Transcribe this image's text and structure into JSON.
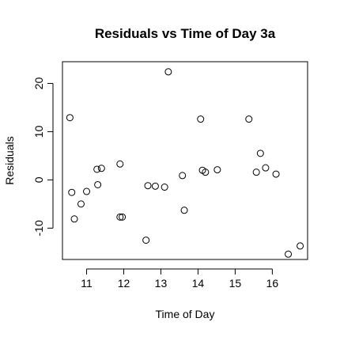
{
  "chart_data": {
    "type": "scatter",
    "title": "Residuals vs Time of Day 3a",
    "xlabel": "Time of Day",
    "ylabel": "Residuals",
    "xlim": [
      10.35,
      16.95
    ],
    "ylim": [
      -16.5,
      24.5
    ],
    "x_ticks": [
      11,
      12,
      13,
      14,
      15,
      16
    ],
    "y_ticks": [
      -10,
      0,
      10,
      20
    ],
    "grid": false,
    "legend": "none",
    "marker": "open-circle",
    "points": [
      {
        "x": 10.55,
        "y": 12.9
      },
      {
        "x": 10.6,
        "y": -2.6
      },
      {
        "x": 10.67,
        "y": -8.1
      },
      {
        "x": 10.85,
        "y": -5.0
      },
      {
        "x": 11.0,
        "y": -2.4
      },
      {
        "x": 11.28,
        "y": 2.2
      },
      {
        "x": 11.3,
        "y": -1.0
      },
      {
        "x": 11.4,
        "y": 2.4
      },
      {
        "x": 11.9,
        "y": 3.3
      },
      {
        "x": 11.9,
        "y": -7.7
      },
      {
        "x": 11.96,
        "y": -7.7
      },
      {
        "x": 12.6,
        "y": -12.5
      },
      {
        "x": 12.65,
        "y": -1.2
      },
      {
        "x": 12.85,
        "y": -1.3
      },
      {
        "x": 13.1,
        "y": -1.5
      },
      {
        "x": 13.2,
        "y": 22.4
      },
      {
        "x": 13.58,
        "y": 0.9
      },
      {
        "x": 13.63,
        "y": -6.3
      },
      {
        "x": 14.07,
        "y": 12.6
      },
      {
        "x": 14.12,
        "y": 2.0
      },
      {
        "x": 14.2,
        "y": 1.6
      },
      {
        "x": 14.52,
        "y": 2.1
      },
      {
        "x": 15.37,
        "y": 12.6
      },
      {
        "x": 15.57,
        "y": 1.6
      },
      {
        "x": 15.68,
        "y": 5.5
      },
      {
        "x": 15.82,
        "y": 2.5
      },
      {
        "x": 16.1,
        "y": 1.2
      },
      {
        "x": 16.43,
        "y": -15.4
      },
      {
        "x": 16.75,
        "y": -13.7
      }
    ]
  }
}
